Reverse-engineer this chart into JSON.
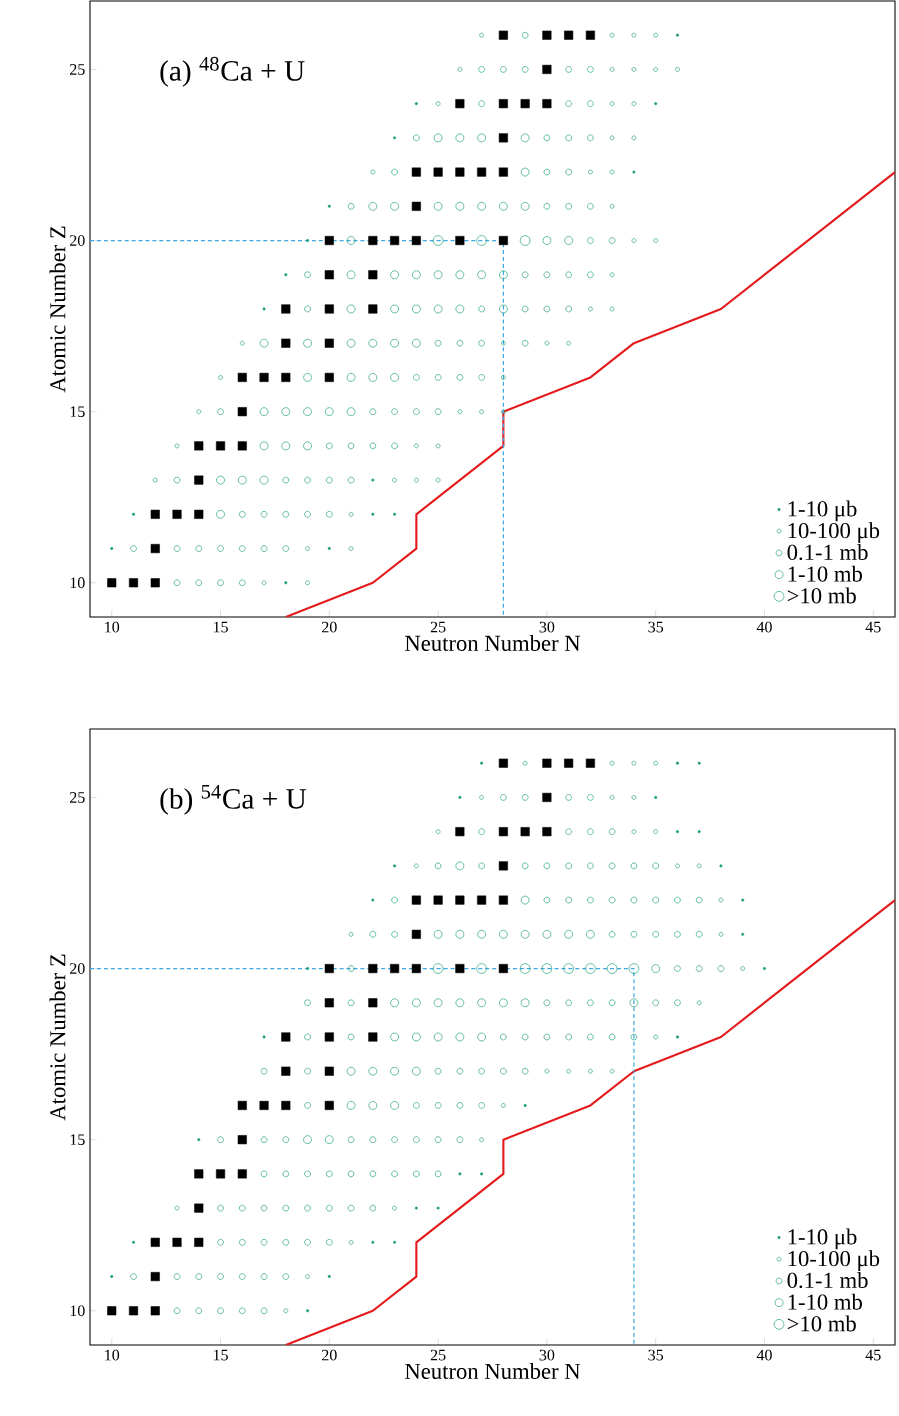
{
  "chart_data": [
    {
      "type": "scatter",
      "annotations": [
        "(a) $^{48}$Ca + U"
      ],
      "xlabel": "Neutron Number N",
      "ylabel": "Atomic Number Z",
      "xlim": [
        9,
        46
      ],
      "ylim": [
        9,
        27
      ],
      "xticks": [
        10,
        15,
        20,
        25,
        30,
        35,
        40,
        45
      ],
      "yticks": [
        10,
        15,
        20,
        25
      ],
      "legend": "bottom right",
      "series": [
        {
          "name": "1-10 μb",
          "color": "#1b9e77",
          "marker": "circle",
          "x": [
            36,
            24,
            35,
            23,
            34,
            20,
            19,
            18,
            17,
            22,
            11,
            22,
            23,
            10,
            20,
            18
          ],
          "values": [
            26,
            24,
            24,
            23,
            22,
            21,
            20,
            19,
            18,
            13,
            12,
            12,
            12,
            11,
            11,
            10
          ]
        },
        {
          "name": "10-100 μb",
          "color": "#1b9e77",
          "marker": "circle",
          "x": [
            27,
            33,
            34,
            35,
            26,
            33,
            34,
            35,
            36,
            25,
            33,
            34,
            33,
            34,
            22,
            32,
            33,
            33,
            34,
            35,
            33,
            32,
            33,
            16,
            28,
            30,
            31,
            15,
            28,
            14,
            26,
            27,
            28,
            13,
            24,
            25,
            12,
            23,
            24,
            25,
            21,
            19,
            21,
            17,
            19
          ],
          "values": [
            26,
            26,
            26,
            26,
            25,
            25,
            25,
            25,
            25,
            24,
            24,
            24,
            23,
            23,
            22,
            22,
            22,
            21,
            20,
            20,
            19,
            18,
            18,
            17,
            17,
            17,
            17,
            16,
            16,
            15,
            15,
            15,
            15,
            14,
            14,
            14,
            13,
            13,
            13,
            13,
            12,
            11,
            11,
            10,
            10
          ]
        },
        {
          "name": "0.1-1 mb",
          "color": "#1b9e77",
          "marker": "circle",
          "x": [
            29,
            27,
            28,
            29,
            31,
            32,
            27,
            31,
            32,
            24,
            30,
            31,
            32,
            23,
            30,
            31,
            21,
            30,
            31,
            32,
            32,
            33,
            19,
            29,
            30,
            31,
            32,
            19,
            27,
            29,
            30,
            31,
            25,
            26,
            27,
            29,
            24,
            25,
            26,
            27,
            15,
            22,
            23,
            24,
            25,
            20,
            21,
            22,
            23,
            13,
            18,
            19,
            20,
            21,
            16,
            17,
            18,
            19,
            20,
            11,
            13,
            14,
            15,
            16,
            17,
            18,
            13,
            14,
            15,
            16
          ],
          "values": [
            26,
            25,
            25,
            25,
            25,
            25,
            24,
            24,
            24,
            23,
            23,
            23,
            23,
            22,
            22,
            22,
            21,
            21,
            21,
            21,
            20,
            20,
            19,
            19,
            19,
            19,
            19,
            18,
            18,
            18,
            18,
            18,
            17,
            17,
            17,
            17,
            16,
            16,
            16,
            16,
            15,
            15,
            15,
            15,
            15,
            14,
            14,
            14,
            14,
            13,
            13,
            13,
            13,
            13,
            12,
            12,
            12,
            12,
            12,
            11,
            11,
            11,
            11,
            11,
            11,
            11,
            10,
            10,
            10,
            10
          ]
        },
        {
          "name": "1-10 mb",
          "color": "#1b9e77",
          "marker": "circle",
          "x": [
            25,
            26,
            27,
            29,
            29,
            22,
            23,
            25,
            26,
            27,
            28,
            29,
            21,
            30,
            31,
            21,
            23,
            24,
            25,
            26,
            27,
            28,
            21,
            23,
            24,
            25,
            26,
            28,
            17,
            19,
            21,
            22,
            23,
            24,
            19,
            21,
            22,
            23,
            17,
            18,
            19,
            20,
            21,
            17,
            18,
            19,
            15,
            16,
            17,
            15
          ],
          "values": [
            23,
            23,
            23,
            23,
            22,
            21,
            21,
            21,
            21,
            21,
            21,
            21,
            20,
            20,
            20,
            19,
            19,
            19,
            19,
            19,
            19,
            19,
            18,
            18,
            18,
            18,
            18,
            18,
            17,
            17,
            17,
            17,
            17,
            17,
            16,
            16,
            16,
            16,
            15,
            15,
            15,
            15,
            15,
            14,
            14,
            14,
            13,
            13,
            13,
            12
          ]
        },
        {
          "name": ">10 mb",
          "color": "#1b9e77",
          "marker": "circle",
          "x": [
            25,
            27,
            29
          ],
          "values": [
            20,
            20,
            20
          ]
        },
        {
          "color": "#000000",
          "marker": "square",
          "x": [
            28,
            30,
            31,
            32,
            30,
            26,
            28,
            29,
            30,
            28,
            24,
            25,
            26,
            27,
            28,
            24,
            20,
            22,
            23,
            24,
            26,
            28,
            20,
            22,
            18,
            20,
            22,
            18,
            20,
            16,
            17,
            18,
            20,
            16,
            14,
            15,
            16,
            14,
            12,
            13,
            14,
            12,
            10,
            11,
            12
          ],
          "values": [
            26,
            26,
            26,
            26,
            25,
            24,
            24,
            24,
            24,
            23,
            22,
            22,
            22,
            22,
            22,
            21,
            20,
            20,
            20,
            20,
            20,
            20,
            19,
            19,
            18,
            18,
            18,
            17,
            17,
            16,
            16,
            16,
            16,
            15,
            14,
            14,
            14,
            13,
            12,
            12,
            12,
            11,
            10,
            10,
            10
          ]
        },
        {
          "type": "line",
          "color": "#e41a1c",
          "line_style": "solid",
          "x": [
            18,
            22,
            24,
            24,
            28,
            28,
            32,
            34,
            38,
            46
          ],
          "values": [
            9,
            10,
            11,
            12,
            14,
            15,
            16,
            17,
            18,
            22
          ]
        },
        {
          "type": "line",
          "color": "#3ba9e0",
          "line_style": "dashed",
          "x": [
            9,
            28,
            28
          ],
          "values": [
            20,
            20,
            9
          ]
        }
      ]
    },
    {
      "type": "scatter",
      "annotations": [
        "(b) $^{54}$Ca + U"
      ],
      "xlabel": "Neutron Number N",
      "ylabel": "Atomic Number Z",
      "xlim": [
        9,
        46
      ],
      "ylim": [
        9,
        27
      ],
      "xticks": [
        10,
        15,
        20,
        25,
        30,
        35,
        40,
        45
      ],
      "yticks": [
        10,
        15,
        20,
        25
      ],
      "legend": "bottom right",
      "series": [
        {
          "name": "1-10 μb",
          "color": "#1b9e77",
          "marker": "circle",
          "x": [
            27,
            36,
            37,
            26,
            35,
            36,
            37,
            23,
            38,
            22,
            39,
            39,
            19,
            40,
            17,
            36,
            29,
            14,
            26,
            27,
            24,
            25,
            11,
            22,
            23,
            10,
            20,
            19
          ],
          "values": [
            26,
            26,
            26,
            25,
            25,
            24,
            24,
            23,
            23,
            22,
            22,
            21,
            20,
            20,
            18,
            18,
            16,
            15,
            14,
            14,
            13,
            13,
            12,
            12,
            12,
            11,
            11,
            10
          ]
        },
        {
          "name": "10-100 μb",
          "color": "#1b9e77",
          "marker": "circle",
          "x": [
            29,
            33,
            34,
            35,
            27,
            33,
            34,
            25,
            34,
            35,
            24,
            36,
            37,
            38,
            21,
            38,
            39,
            37,
            35,
            30,
            31,
            32,
            33,
            28,
            27,
            13,
            23,
            21,
            19,
            18
          ],
          "values": [
            26,
            26,
            26,
            26,
            25,
            25,
            25,
            24,
            24,
            24,
            23,
            23,
            23,
            22,
            21,
            21,
            20,
            19,
            18,
            17,
            17,
            17,
            17,
            16,
            15,
            13,
            13,
            12,
            11,
            10
          ]
        },
        {
          "name": "0.1-1 mb",
          "color": "#1b9e77",
          "marker": "circle",
          "x": [
            28,
            29,
            31,
            32,
            27,
            31,
            32,
            33,
            25,
            27,
            29,
            30,
            31,
            32,
            33,
            34,
            35,
            23,
            30,
            31,
            32,
            33,
            34,
            35,
            36,
            37,
            22,
            23,
            33,
            34,
            35,
            36,
            37,
            21,
            36,
            37,
            38,
            19,
            21,
            30,
            31,
            32,
            33,
            35,
            36,
            19,
            21,
            28,
            29,
            30,
            31,
            32,
            33,
            34,
            17,
            19,
            25,
            26,
            27,
            28,
            29,
            19,
            24,
            25,
            26,
            27,
            15,
            17,
            18,
            21,
            22,
            23,
            24,
            25,
            26,
            17,
            18,
            19,
            20,
            21,
            22,
            23,
            24,
            25,
            15,
            16,
            17,
            18,
            19,
            20,
            21,
            22,
            15,
            16,
            17,
            18,
            19,
            20,
            11,
            13,
            14,
            15,
            16,
            17,
            18,
            13,
            14,
            15,
            16,
            17
          ],
          "values": [
            25,
            25,
            25,
            25,
            24,
            24,
            24,
            24,
            23,
            23,
            23,
            23,
            23,
            23,
            23,
            23,
            23,
            22,
            22,
            22,
            22,
            22,
            22,
            22,
            22,
            22,
            21,
            21,
            21,
            21,
            21,
            21,
            21,
            20,
            20,
            20,
            20,
            19,
            19,
            19,
            19,
            19,
            19,
            19,
            19,
            18,
            18,
            18,
            18,
            18,
            18,
            18,
            18,
            18,
            17,
            17,
            17,
            17,
            17,
            17,
            17,
            16,
            16,
            16,
            16,
            16,
            15,
            15,
            15,
            15,
            15,
            15,
            15,
            15,
            15,
            14,
            14,
            14,
            14,
            14,
            14,
            14,
            14,
            14,
            13,
            13,
            13,
            13,
            13,
            13,
            13,
            13,
            12,
            12,
            12,
            12,
            12,
            12,
            11,
            11,
            11,
            11,
            11,
            11,
            11,
            10,
            10,
            10,
            10,
            10
          ]
        },
        {
          "name": "1-10 mb",
          "color": "#1b9e77",
          "marker": "circle",
          "x": [
            26,
            29,
            25,
            26,
            27,
            28,
            29,
            30,
            31,
            32,
            35,
            23,
            24,
            25,
            26,
            27,
            28,
            29,
            34,
            23,
            24,
            25,
            26,
            27,
            21,
            22,
            23,
            24,
            21,
            22,
            23,
            19,
            20
          ],
          "values": [
            23,
            22,
            21,
            21,
            21,
            21,
            21,
            21,
            21,
            21,
            20,
            19,
            19,
            19,
            19,
            19,
            19,
            19,
            19,
            18,
            18,
            18,
            18,
            18,
            17,
            17,
            17,
            17,
            16,
            16,
            16,
            15,
            15
          ]
        },
        {
          "name": ">10 mb",
          "color": "#1b9e77",
          "marker": "circle",
          "x": [
            25,
            27,
            29,
            30,
            31,
            32,
            33,
            34
          ],
          "values": [
            20,
            20,
            20,
            20,
            20,
            20,
            20,
            20
          ]
        },
        {
          "color": "#000000",
          "marker": "square",
          "x": [
            28,
            30,
            31,
            32,
            30,
            26,
            28,
            29,
            30,
            28,
            24,
            25,
            26,
            27,
            28,
            24,
            20,
            22,
            23,
            24,
            26,
            28,
            20,
            22,
            18,
            20,
            22,
            18,
            20,
            16,
            17,
            18,
            20,
            16,
            14,
            15,
            16,
            14,
            12,
            13,
            14,
            12,
            10,
            11,
            12
          ],
          "values": [
            26,
            26,
            26,
            26,
            25,
            24,
            24,
            24,
            24,
            23,
            22,
            22,
            22,
            22,
            22,
            21,
            20,
            20,
            20,
            20,
            20,
            20,
            19,
            19,
            18,
            18,
            18,
            17,
            17,
            16,
            16,
            16,
            16,
            15,
            14,
            14,
            14,
            13,
            12,
            12,
            12,
            11,
            10,
            10,
            10
          ]
        },
        {
          "type": "line",
          "color": "#e41a1c",
          "line_style": "solid",
          "x": [
            18,
            22,
            24,
            24,
            28,
            28,
            32,
            34,
            38,
            46
          ],
          "values": [
            9,
            10,
            11,
            12,
            14,
            15,
            16,
            17,
            18,
            22
          ]
        },
        {
          "type": "line",
          "color": "#3ba9e0",
          "line_style": "dashed",
          "x": [
            9,
            34,
            34
          ],
          "values": [
            20,
            20,
            9
          ]
        }
      ]
    }
  ]
}
